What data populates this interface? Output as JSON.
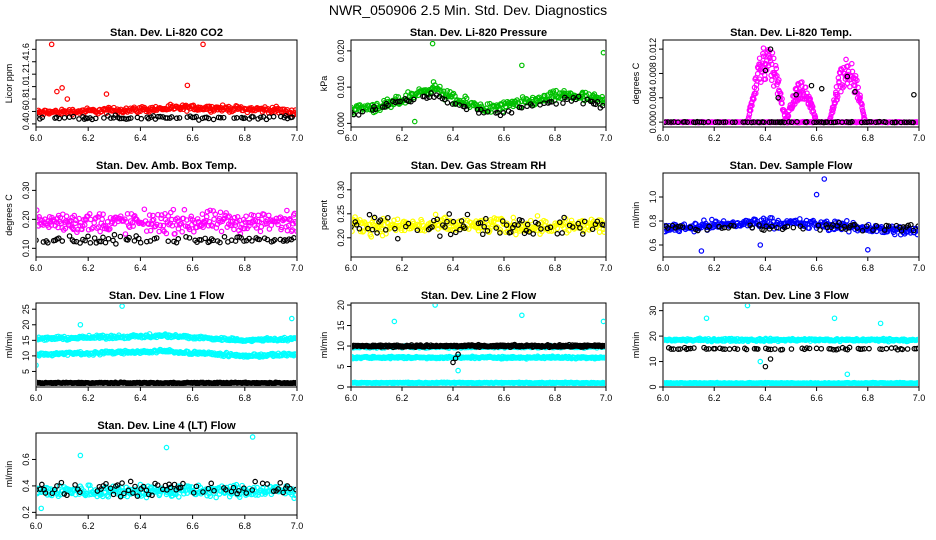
{
  "title": "NWR_050906  2.5 Min. Std. Dev. Diagnostics",
  "chart_data": [
    {
      "type": "scatter",
      "title": "Stan. Dev. Li-820 CO2",
      "xlabel": "",
      "ylabel": "Licor ppm",
      "xlim": [
        6.0,
        7.0
      ],
      "ylim": [
        0.35,
        1.75
      ],
      "xticks": [
        "6.0",
        "6.2",
        "6.4",
        "6.6",
        "6.8",
        "7.0"
      ],
      "yticks": [
        "0.4",
        "0.6",
        "0.8",
        "1.0",
        "1.2",
        "1.4",
        "1.6"
      ],
      "series": [
        {
          "color": "#ff0000",
          "bands": [
            {
              "y": 0.58,
              "spread": 0.07
            }
          ],
          "trend": [
            [
              6.0,
              0.0
            ],
            [
              6.6,
              0.08
            ],
            [
              6.9,
              0.05
            ],
            [
              7.0,
              0.0
            ]
          ],
          "outliers": [
            [
              6.06,
              1.68
            ],
            [
              6.08,
              0.92
            ],
            [
              6.1,
              0.98
            ],
            [
              6.27,
              0.88
            ],
            [
              6.58,
              1.02
            ],
            [
              6.64,
              1.68
            ],
            [
              6.12,
              0.8
            ]
          ]
        },
        {
          "color": "#000000",
          "bands": [
            {
              "y": 0.5,
              "spread": 0.05
            }
          ],
          "sparse": true
        }
      ]
    },
    {
      "type": "scatter",
      "title": "Stan. Dev. Li-820 Pressure",
      "xlabel": "",
      "ylabel": "kPa",
      "xlim": [
        6.0,
        7.0
      ],
      "ylim": [
        -0.001,
        0.023
      ],
      "xticks": [
        "6.0",
        "6.2",
        "6.4",
        "6.6",
        "6.8",
        "7.0"
      ],
      "yticks": [
        "0.000",
        "0.010",
        "0.020"
      ],
      "series": [
        {
          "color": "#00c000",
          "bands": [
            {
              "y": 0.004,
              "spread": 0.0022
            }
          ],
          "trend": [
            [
              6.0,
              0.0
            ],
            [
              6.15,
              0.001
            ],
            [
              6.32,
              0.006
            ],
            [
              6.42,
              0.002
            ],
            [
              6.55,
              0.0
            ],
            [
              6.7,
              0.002
            ],
            [
              6.85,
              0.004
            ],
            [
              7.0,
              0.002
            ]
          ],
          "outliers": [
            [
              6.32,
              0.022
            ],
            [
              6.67,
              0.016
            ],
            [
              6.99,
              0.0195
            ],
            [
              6.25,
              0.0005
            ]
          ]
        },
        {
          "color": "#000000",
          "bands": [
            {
              "y": 0.003,
              "spread": 0.0015
            }
          ],
          "trend": [
            [
              6.0,
              0.0
            ],
            [
              6.32,
              0.005
            ],
            [
              6.45,
              0.001
            ],
            [
              6.6,
              0.0
            ],
            [
              6.85,
              0.004
            ],
            [
              7.0,
              0.002
            ]
          ],
          "sparse": true
        }
      ]
    },
    {
      "type": "scatter",
      "title": "Stan. Dev. Li-820 Temp.",
      "xlabel": "",
      "ylabel": "degrees C",
      "xlim": [
        6.0,
        7.0
      ],
      "ylim": [
        -0.0008,
        0.0135
      ],
      "xticks": [
        "6.0",
        "6.2",
        "6.4",
        "6.6",
        "6.8",
        "7.0"
      ],
      "yticks": [
        "0.000",
        "0.004",
        "0.008",
        "0.012"
      ],
      "series": [
        {
          "color": "#ff00ff",
          "bands": [
            {
              "y": 0.0,
              "spread": 0.0001
            }
          ],
          "trend": [],
          "humps": [
            [
              6.33,
              6.48,
              0.0128
            ],
            [
              6.48,
              6.6,
              0.0068
            ],
            [
              6.65,
              6.79,
              0.0105
            ]
          ]
        },
        {
          "color": "#000000",
          "bands": [
            {
              "y": 0.0,
              "spread": 0.0001
            }
          ],
          "sparse": true,
          "outliers": [
            [
              6.4,
              0.0085
            ],
            [
              6.42,
              0.012
            ],
            [
              6.45,
              0.004
            ],
            [
              6.52,
              0.0045
            ],
            [
              6.58,
              0.006
            ],
            [
              6.62,
              0.0055
            ],
            [
              6.72,
              0.0075
            ],
            [
              6.75,
              0.005
            ],
            [
              6.98,
              0.0045
            ]
          ]
        }
      ]
    },
    {
      "type": "scatter",
      "title": "Stan. Dev. Amb. Box Temp.",
      "xlabel": "",
      "ylabel": "degrees C",
      "xlim": [
        6.0,
        7.0
      ],
      "ylim": [
        0.07,
        0.36
      ],
      "xticks": [
        "6.0",
        "6.2",
        "6.4",
        "6.6",
        "6.8",
        "7.0"
      ],
      "yticks": [
        "0.10",
        "0.20",
        "0.30"
      ],
      "series": [
        {
          "color": "#ff00ff",
          "bands": [
            {
              "y": 0.19,
              "spread": 0.055
            }
          ],
          "trend": []
        },
        {
          "color": "#000000",
          "bands": [
            {
              "y": 0.13,
              "spread": 0.02
            }
          ],
          "sparse": true
        }
      ]
    },
    {
      "type": "scatter",
      "title": "Stan. Dev. Gas Stream RH",
      "xlabel": "",
      "ylabel": "percent",
      "xlim": [
        6.0,
        7.0
      ],
      "ylim": [
        0.16,
        0.335
      ],
      "xticks": [
        "6.0",
        "6.2",
        "6.4",
        "6.6",
        "6.8",
        "7.0"
      ],
      "yticks": [
        "0.20",
        "0.25",
        "0.30"
      ],
      "series": [
        {
          "color": "#ffff00",
          "bands": [
            {
              "y": 0.225,
              "spread": 0.025
            }
          ],
          "trend": []
        },
        {
          "color": "#000000",
          "bands": [
            {
              "y": 0.225,
              "spread": 0.03
            }
          ],
          "sparse": true
        }
      ]
    },
    {
      "type": "scatter",
      "title": "Stan. Dev. Sample Flow",
      "xlabel": "",
      "ylabel": "ml/min",
      "xlim": [
        6.0,
        7.0
      ],
      "ylim": [
        0.5,
        1.2
      ],
      "xticks": [
        "6.0",
        "6.2",
        "6.4",
        "6.6",
        "6.8",
        "7.0"
      ],
      "yticks": [
        "0.6",
        "0.8",
        "1.0"
      ],
      "series": [
        {
          "color": "#0000ff",
          "bands": [
            {
              "y": 0.74,
              "spread": 0.06
            }
          ],
          "trend": [
            [
              6.0,
              0.0
            ],
            [
              6.4,
              0.05
            ],
            [
              6.6,
              0.03
            ],
            [
              7.0,
              -0.03
            ]
          ],
          "outliers": [
            [
              6.63,
              1.15
            ],
            [
              6.6,
              1.02
            ],
            [
              6.8,
              0.56
            ],
            [
              6.38,
              0.6
            ],
            [
              6.15,
              0.55
            ]
          ]
        },
        {
          "color": "#000000",
          "bands": [
            {
              "y": 0.75,
              "spread": 0.05
            }
          ],
          "sparse": true
        }
      ]
    },
    {
      "type": "scatter",
      "title": "Stan. Dev. Line 1 Flow",
      "xlabel": "",
      "ylabel": "ml/min",
      "xlim": [
        6.0,
        7.0
      ],
      "ylim": [
        0,
        27
      ],
      "xticks": [
        "6.0",
        "6.2",
        "6.4",
        "6.6",
        "6.8",
        "7.0"
      ],
      "yticks": [
        "5",
        "10",
        "15",
        "20",
        "25"
      ],
      "series": [
        {
          "color": "#00ffff",
          "bands": [
            {
              "y": 15.5,
              "spread": 0.8
            },
            {
              "y": 10.5,
              "spread": 0.8
            }
          ],
          "trend": [
            [
              6.0,
              0.0
            ],
            [
              6.5,
              1.0
            ],
            [
              6.8,
              -0.5
            ],
            [
              7.0,
              0.0
            ]
          ],
          "outliers": [
            [
              6.33,
              26
            ],
            [
              6.98,
              22
            ],
            [
              6.0,
              7
            ],
            [
              6.17,
              20
            ]
          ]
        },
        {
          "color": "#000000",
          "bands": [
            {
              "y": 1.3,
              "spread": 0.3
            }
          ]
        }
      ]
    },
    {
      "type": "scatter",
      "title": "Stan. Dev. Line 2 Flow",
      "xlabel": "",
      "ylabel": "ml/min",
      "xlim": [
        6.0,
        7.0
      ],
      "ylim": [
        0,
        20.5
      ],
      "xticks": [
        "6.0",
        "6.2",
        "6.4",
        "6.6",
        "6.8",
        "7.0"
      ],
      "yticks": [
        "0",
        "5",
        "10",
        "15",
        "20"
      ],
      "series": [
        {
          "color": "#00ffff",
          "bands": [
            {
              "y": 9.8,
              "spread": 0.4
            },
            {
              "y": 7.2,
              "spread": 0.4
            },
            {
              "y": 1.0,
              "spread": 0.2
            }
          ],
          "trend": [],
          "outliers": [
            [
              6.33,
              20
            ],
            [
              6.67,
              17.5
            ],
            [
              6.99,
              16
            ],
            [
              6.42,
              4
            ],
            [
              6.17,
              16
            ]
          ]
        },
        {
          "color": "#000000",
          "bands": [
            {
              "y": 10.0,
              "spread": 0.4
            }
          ],
          "outliers": [
            [
              6.4,
              6
            ],
            [
              6.42,
              8
            ],
            [
              6.41,
              7
            ]
          ]
        }
      ]
    },
    {
      "type": "scatter",
      "title": "Stan. Dev. Line 3 Flow",
      "xlabel": "",
      "ylabel": "ml/min",
      "xlim": [
        6.0,
        7.0
      ],
      "ylim": [
        0,
        33
      ],
      "xticks": [
        "6.0",
        "6.2",
        "6.4",
        "6.6",
        "6.8",
        "7.0"
      ],
      "yticks": [
        "0",
        "10",
        "20",
        "30"
      ],
      "series": [
        {
          "color": "#00ffff",
          "bands": [
            {
              "y": 18.5,
              "spread": 0.8
            },
            {
              "y": 1.5,
              "spread": 0.3
            }
          ],
          "trend": [],
          "outliers": [
            [
              6.17,
              27
            ],
            [
              6.33,
              32
            ],
            [
              6.67,
              27
            ],
            [
              6.85,
              25
            ],
            [
              6.72,
              5
            ],
            [
              6.38,
              10
            ]
          ]
        },
        {
          "color": "#000000",
          "bands": [
            {
              "y": 15.0,
              "spread": 0.6
            }
          ],
          "sparse": true,
          "outliers": [
            [
              6.4,
              8
            ],
            [
              6.42,
              11
            ]
          ]
        }
      ]
    },
    {
      "type": "scatter",
      "title": "Stan. Dev. Line 4 (LT) Flow",
      "xlabel": "",
      "ylabel": "ml/min",
      "xlim": [
        6.0,
        7.0
      ],
      "ylim": [
        0.18,
        0.8
      ],
      "xticks": [
        "6.0",
        "6.2",
        "6.4",
        "6.6",
        "6.8",
        "7.0"
      ],
      "yticks": [
        "0.2",
        "0.4",
        "0.6"
      ],
      "series": [
        {
          "color": "#00ffff",
          "bands": [
            {
              "y": 0.36,
              "spread": 0.07
            }
          ],
          "trend": [],
          "outliers": [
            [
              6.5,
              0.69
            ],
            [
              6.83,
              0.77
            ],
            [
              6.17,
              0.63
            ],
            [
              6.02,
              0.23
            ]
          ]
        },
        {
          "color": "#000000",
          "bands": [
            {
              "y": 0.38,
              "spread": 0.07
            }
          ],
          "sparse": true
        }
      ]
    }
  ]
}
